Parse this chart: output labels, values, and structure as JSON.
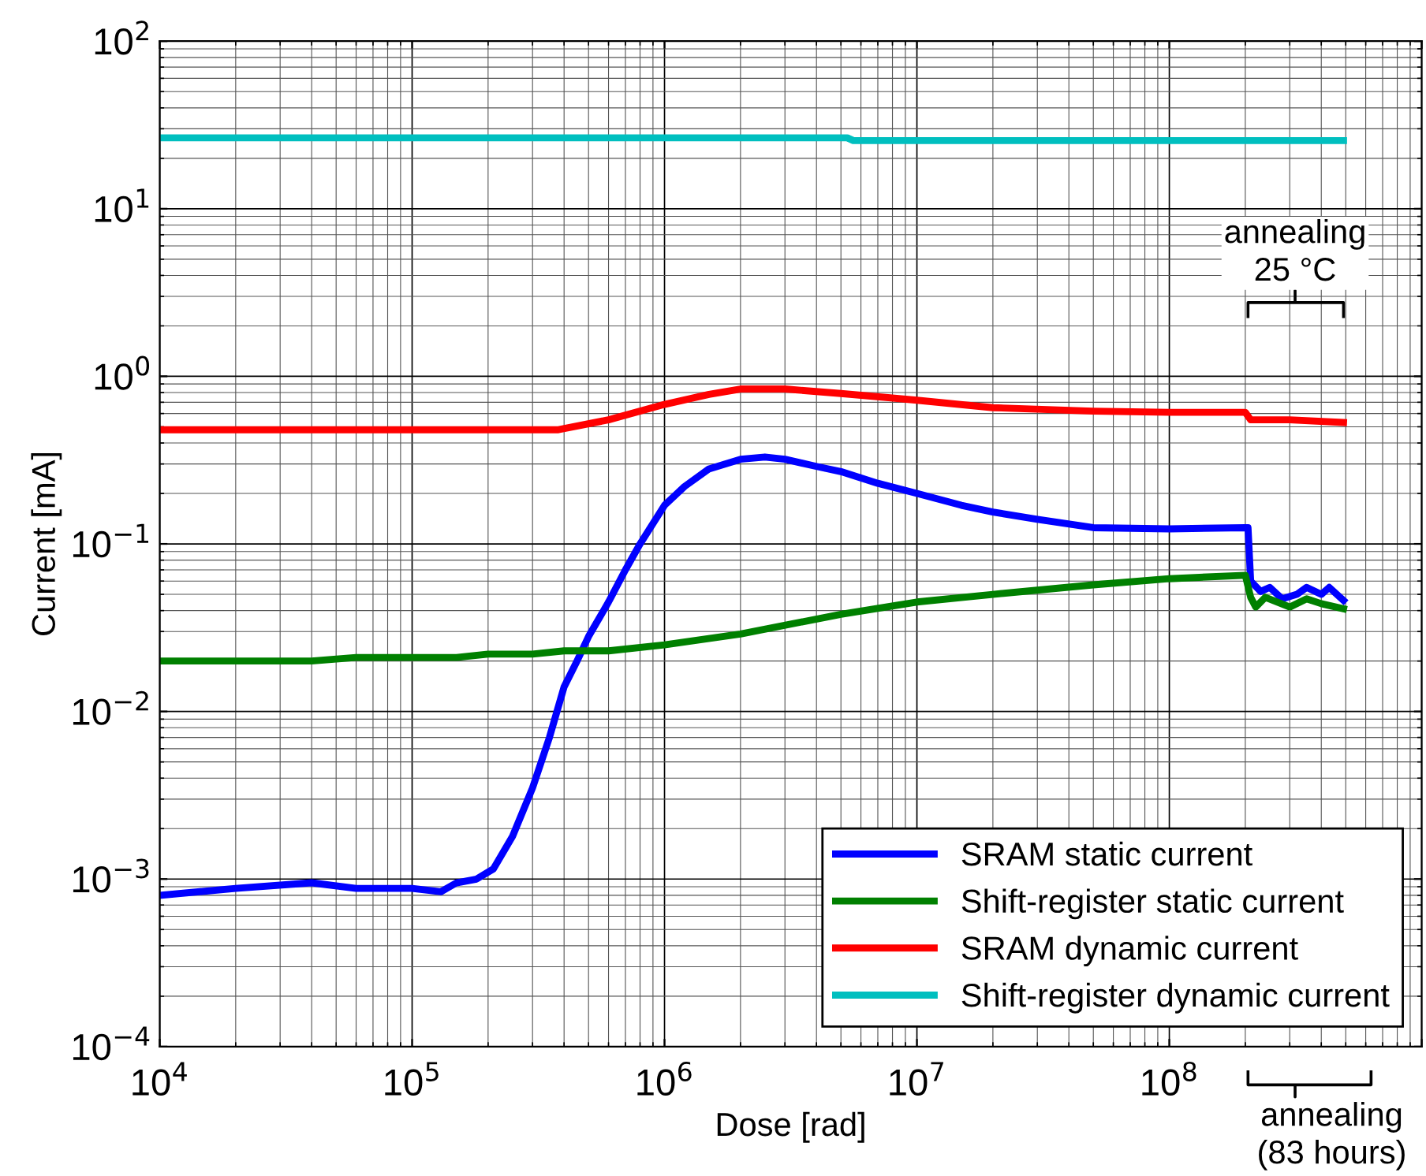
{
  "chart_data": {
    "type": "line",
    "xlabel": "Dose [rad]",
    "ylabel": "Current [mA]",
    "log": "xy",
    "grid": true,
    "legend": "bottom right",
    "line_style": "solid",
    "xlim": [
      10000,
      1000000000
    ],
    "ylim": [
      0.0001,
      100
    ],
    "xticks": [
      {
        "value": 10000,
        "label": "10$^{4}$"
      },
      {
        "value": 100000,
        "label": "10$^{5}$"
      },
      {
        "value": 1000000,
        "label": "10$^{6}$"
      },
      {
        "value": 10000000,
        "label": "10$^{7}$"
      },
      {
        "value": 100000000,
        "label": "10$^{8}$"
      },
      {
        "value": 1000000000,
        "label": null
      }
    ],
    "yticks": [
      {
        "value": 0.0001,
        "label": "10$^{−4}$"
      },
      {
        "value": 0.001,
        "label": "10$^{−3}$"
      },
      {
        "value": 0.01,
        "label": "10$^{−2}$"
      },
      {
        "value": 0.1,
        "label": "10$^{−1}$"
      },
      {
        "value": 1,
        "label": "10$^{0}$"
      },
      {
        "value": 10,
        "label": "10$^{1}$"
      },
      {
        "value": 100,
        "label": "10$^{2}$"
      }
    ],
    "series": [
      {
        "name": "SRAM static current",
        "color": "#0000ff",
        "x": [
          10000,
          20000,
          40000,
          60000,
          100000,
          130000,
          150000,
          180000,
          210000,
          250000,
          300000,
          350000,
          400000,
          450000,
          500000,
          600000,
          700000,
          800000,
          1000000,
          1200000,
          1500000,
          2000000,
          2500000,
          3000000,
          4000000,
          5000000,
          7000000,
          10000000,
          15000000,
          20000000,
          30000000,
          50000000,
          100000000,
          200000000,
          205000000,
          210000000,
          230000000,
          250000000,
          280000000,
          320000000,
          350000000,
          400000000,
          430000000,
          490000000
        ],
        "values": [
          0.0008,
          0.00088,
          0.00095,
          0.00088,
          0.00088,
          0.00084,
          0.00095,
          0.001,
          0.00115,
          0.0018,
          0.0035,
          0.007,
          0.014,
          0.02,
          0.028,
          0.045,
          0.07,
          0.1,
          0.17,
          0.22,
          0.28,
          0.32,
          0.33,
          0.32,
          0.29,
          0.27,
          0.23,
          0.2,
          0.17,
          0.155,
          0.14,
          0.125,
          0.123,
          0.125,
          0.125,
          0.06,
          0.052,
          0.055,
          0.047,
          0.05,
          0.055,
          0.05,
          0.055,
          0.046
        ]
      },
      {
        "name": "Shift-register static current",
        "color": "#008000",
        "x": [
          10000,
          40000,
          60000,
          150000,
          200000,
          300000,
          400000,
          600000,
          1000000,
          2000000,
          5000000,
          10000000,
          20000000,
          50000000,
          100000000,
          200000000,
          210000000,
          220000000,
          240000000,
          300000000,
          350000000,
          400000000,
          490000000
        ],
        "values": [
          0.02,
          0.02,
          0.021,
          0.021,
          0.022,
          0.022,
          0.023,
          0.023,
          0.025,
          0.029,
          0.038,
          0.045,
          0.05,
          0.057,
          0.062,
          0.065,
          0.048,
          0.042,
          0.048,
          0.042,
          0.047,
          0.044,
          0.041
        ]
      },
      {
        "name": "SRAM dynamic current",
        "color": "#ff0000",
        "x": [
          10000,
          380000,
          600000,
          1000000,
          1500000,
          2000000,
          3000000,
          5000000,
          10000000,
          20000000,
          50000000,
          100000000,
          200000000,
          210000000,
          300000000,
          490000000
        ],
        "values": [
          0.48,
          0.48,
          0.55,
          0.68,
          0.78,
          0.84,
          0.84,
          0.79,
          0.72,
          0.65,
          0.62,
          0.61,
          0.61,
          0.55,
          0.55,
          0.53
        ]
      },
      {
        "name": "Shift-register dynamic current",
        "color": "#00bfbf",
        "x": [
          10000,
          5300000,
          5600000,
          490000000
        ],
        "values": [
          26.5,
          26.5,
          25.5,
          25.5
        ]
      }
    ],
    "annotations": [
      "annealing\n25 °C",
      "annealing\n(83 hours)"
    ]
  }
}
